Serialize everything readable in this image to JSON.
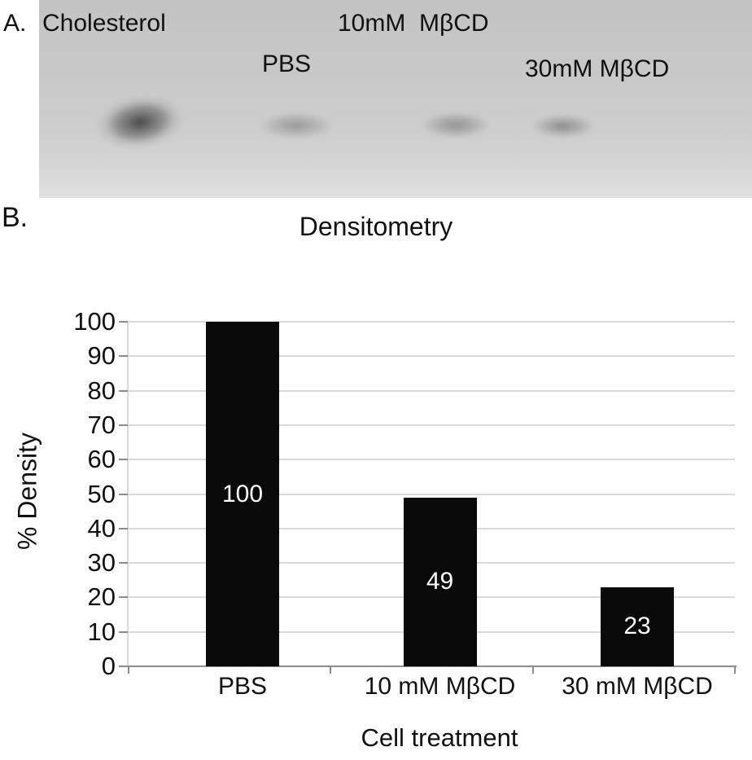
{
  "figure": {
    "panel_a": {
      "panel_label": "A.",
      "lane_labels": {
        "standard": "Cholesterol",
        "treatment_10mm": "10mM  MβCD",
        "pbs": "PBS",
        "treatment_30mm": "30mM MβCD"
      }
    },
    "panel_b": {
      "panel_label": "B."
    }
  },
  "chart_data": {
    "type": "bar",
    "title": "Densitometry",
    "categories": [
      "PBS",
      "10 mM MβCD",
      "30 mM MβCD"
    ],
    "values": [
      100,
      49,
      23
    ],
    "bar_labels": [
      "100",
      "49",
      "23"
    ],
    "xlabel": "Cell treatment",
    "ylabel": "% Density",
    "ylim": [
      0,
      100
    ],
    "ytick_step": 10,
    "grid": true,
    "legend": "none",
    "bar_color": "#0a0a0a",
    "bar_label_color": "#ffffff",
    "gridline_color": "#d9d9d9",
    "axis_color": "#8c8c8c"
  }
}
